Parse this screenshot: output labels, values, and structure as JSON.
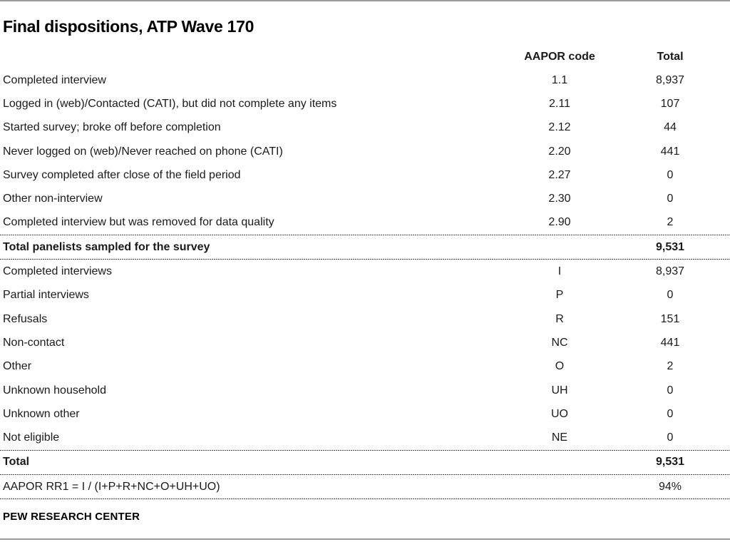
{
  "title": "Final dispositions, ATP Wave 170",
  "footer": "PEW RESEARCH CENTER",
  "colors": {
    "text": "#1a1a1a",
    "rule_gray": "#9a9a9a",
    "dotted_rule": "#4a4a4a",
    "background": "#ffffff"
  },
  "table": {
    "headers": {
      "label": "",
      "code": "AAPOR code",
      "total": "Total"
    },
    "section1": [
      {
        "label": "Completed interview",
        "code": "1.1",
        "total": "8,937"
      },
      {
        "label": "Logged in (web)/Contacted (CATI), but did not complete any items",
        "code": "2.11",
        "total": "107"
      },
      {
        "label": "Started survey; broke off before completion",
        "code": "2.12",
        "total": "44"
      },
      {
        "label": "Never logged on (web)/Never reached on phone (CATI)",
        "code": "2.20",
        "total": "441"
      },
      {
        "label": "Survey completed after close of the field period",
        "code": "2.27",
        "total": "0"
      },
      {
        "label": "Other non-interview",
        "code": "2.30",
        "total": "0"
      },
      {
        "label": "Completed interview but was removed for data quality",
        "code": "2.90",
        "total": "2"
      }
    ],
    "sampled_total": {
      "label": "Total panelists sampled for the survey",
      "code": "",
      "total": "9,531"
    },
    "section2": [
      {
        "label": "Completed interviews",
        "code": "I",
        "total": "8,937"
      },
      {
        "label": "Partial interviews",
        "code": "P",
        "total": "0"
      },
      {
        "label": "Refusals",
        "code": "R",
        "total": "151"
      },
      {
        "label": "Non-contact",
        "code": "NC",
        "total": "441"
      },
      {
        "label": "Other",
        "code": "O",
        "total": "2"
      },
      {
        "label": "Unknown household",
        "code": "UH",
        "total": "0"
      },
      {
        "label": "Unknown other",
        "code": "UO",
        "total": "0"
      },
      {
        "label": "Not eligible",
        "code": "NE",
        "total": "0"
      }
    ],
    "grand_total": {
      "label": "Total",
      "code": "",
      "total": "9,531"
    },
    "response_rate": {
      "label": "AAPOR RR1 = I / (I+P+R+NC+O+UH+UO)",
      "code": "",
      "total": "94%"
    }
  }
}
